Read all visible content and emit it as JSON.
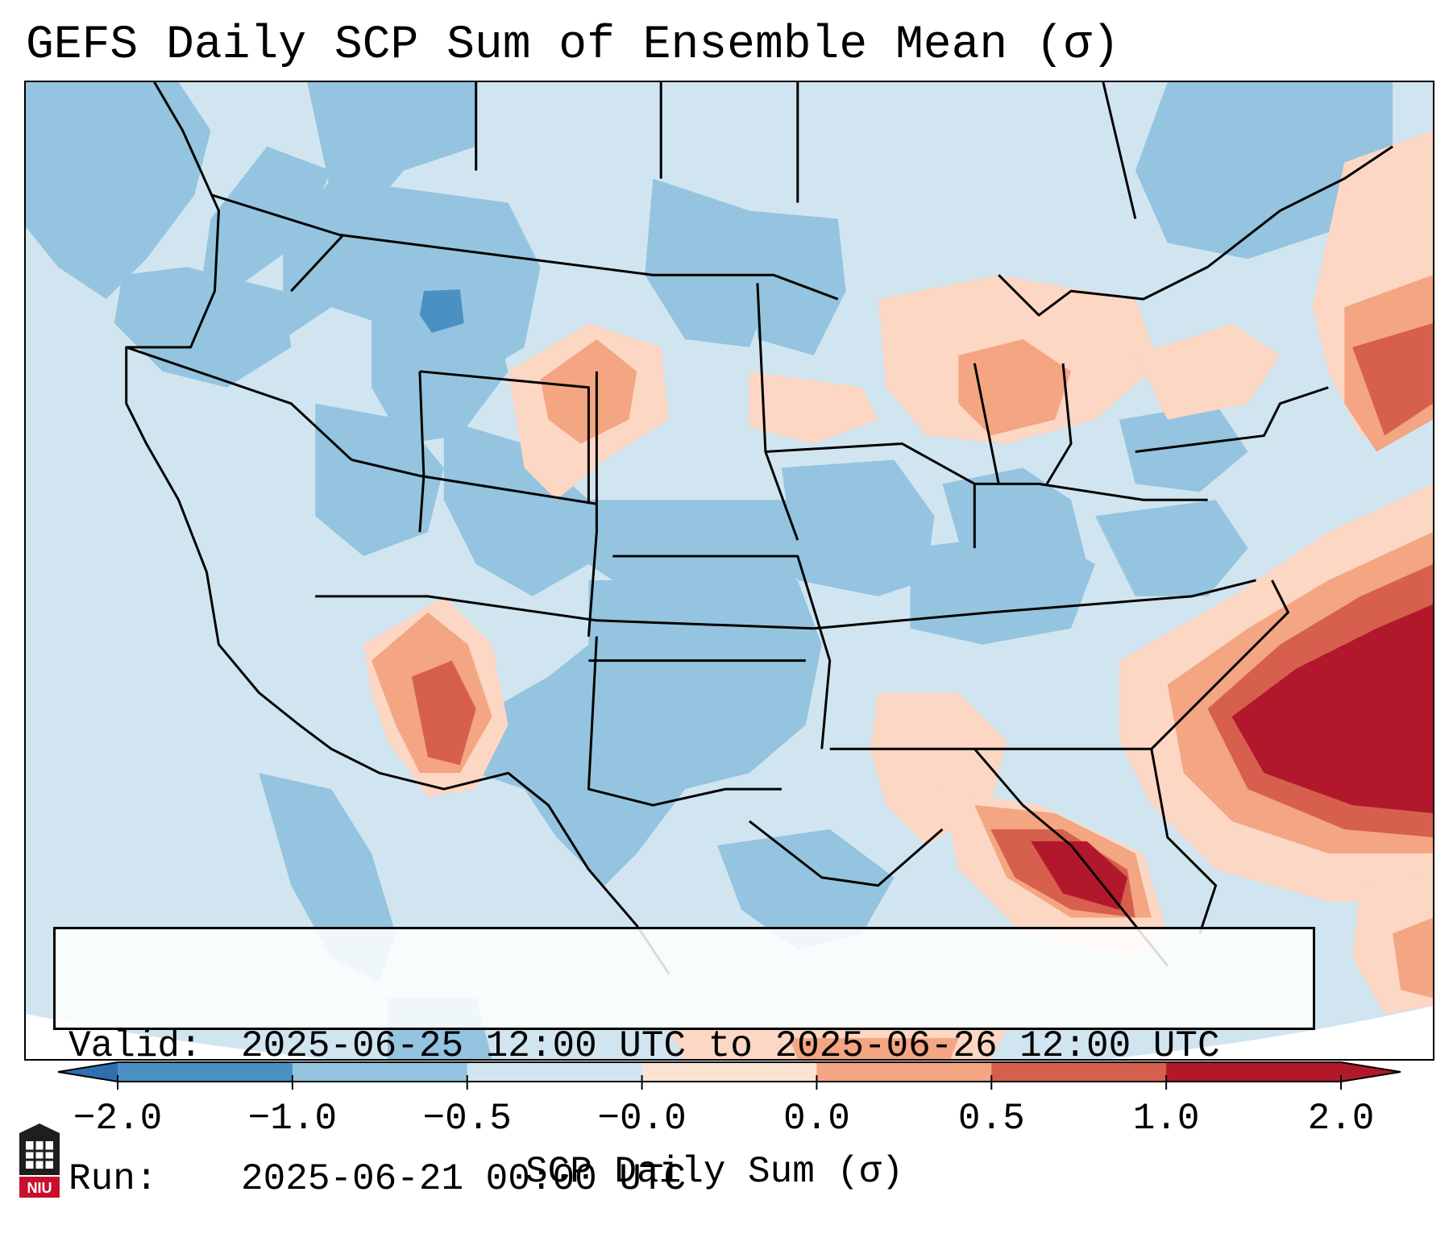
{
  "title": "GEFS Daily SCP Sum of Ensemble Mean (σ)",
  "info": {
    "valid_label": "Valid:",
    "valid_value": "2025-06-25 12:00 UTC to 2025-06-26 12:00 UTC",
    "run_label": "Run:",
    "run_value": "2025-06-21 00:00 UTC"
  },
  "colorbar": {
    "label": "SCP Daily Sum (σ)",
    "ticks": [
      "−2.0",
      "−1.0",
      "−0.5",
      "−0.0",
      "0.0",
      "0.5",
      "1.0",
      "2.0"
    ],
    "colors": [
      "#4a90c2",
      "#94c4df",
      "#d1e5f0",
      "#fbe3d4",
      "#f4a582",
      "#d6604d",
      "#b2182b"
    ],
    "extend_low_color": "#2f6fb0",
    "extend_high_color": "#b2182b"
  },
  "legend_palette": {
    "ocean": "#d1e5f0",
    "land_neutral": "#d1e5f0",
    "light_blue": "#94c4df",
    "medium_blue": "#4a90c2",
    "light_red": "#fbd7c4",
    "medium_red": "#f4a582",
    "red": "#d6604d",
    "dark_red": "#b2182b"
  },
  "logo": {
    "text": "NIU"
  }
}
